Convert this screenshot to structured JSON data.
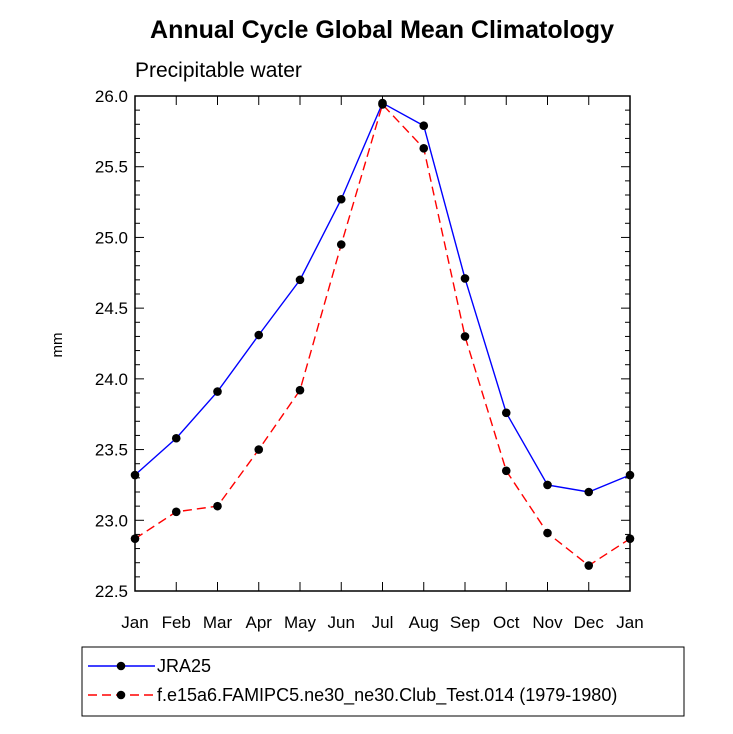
{
  "chart_data": {
    "type": "line",
    "title": "Annual Cycle Global Mean Climatology",
    "subtitle": "Precipitable water",
    "xlabel": "",
    "ylabel": "mm",
    "categories": [
      "Jan",
      "Feb",
      "Mar",
      "Apr",
      "May",
      "Jun",
      "Jul",
      "Aug",
      "Sep",
      "Oct",
      "Nov",
      "Dec",
      "Jan"
    ],
    "ylim": [
      22.5,
      26.0
    ],
    "yticks": [
      "26.0",
      "25.5",
      "25.0",
      "24.5",
      "24.0",
      "23.5",
      "23.0",
      "22.5"
    ],
    "ytick_values": [
      26.0,
      25.5,
      25.0,
      24.5,
      24.0,
      23.5,
      23.0,
      22.5
    ],
    "grid": false,
    "legend_position": "bottom",
    "series": [
      {
        "name": "JRA25",
        "color": "#0000ff",
        "dash": "solid",
        "marker": "circle",
        "values": [
          23.32,
          23.58,
          23.91,
          24.31,
          24.7,
          25.27,
          25.95,
          25.79,
          24.71,
          23.76,
          23.25,
          23.2,
          23.32
        ]
      },
      {
        "name": "f.e15a6.FAMIPC5.ne30_ne30.Club_Test.014 (1979-1980)",
        "color": "#ff0000",
        "dash": "dashed",
        "marker": "circle",
        "values": [
          22.87,
          23.06,
          23.1,
          23.5,
          23.92,
          24.95,
          25.94,
          25.63,
          24.3,
          23.35,
          22.91,
          22.68,
          22.87
        ]
      }
    ]
  }
}
